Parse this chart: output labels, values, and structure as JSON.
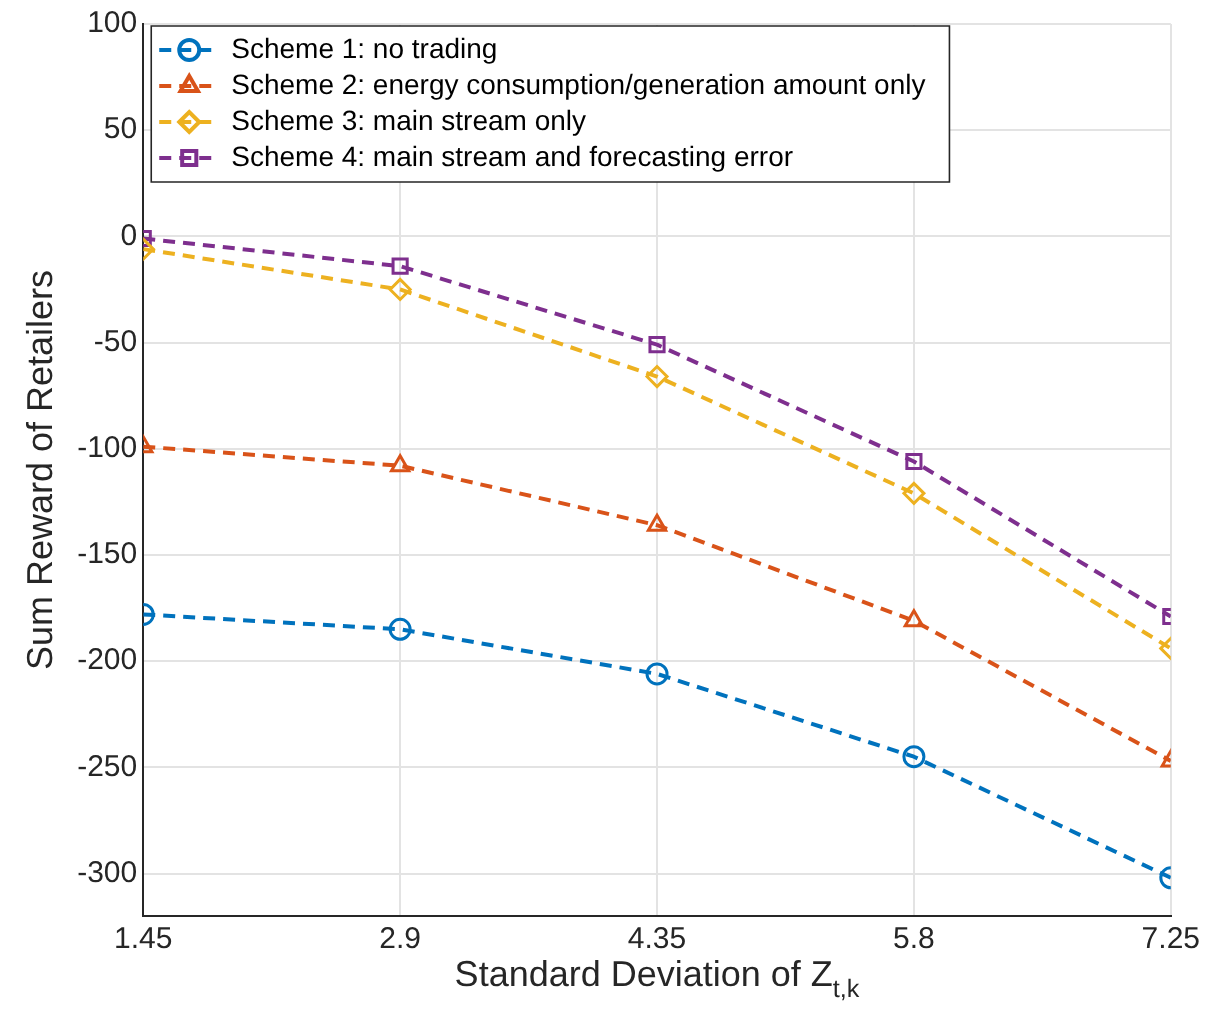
{
  "chart_data": {
    "type": "line",
    "xlabel": "Standard Deviation of Z$_{t,k}$",
    "ylabel": "Sum Reward of Retailers",
    "x": [
      1.45,
      2.9,
      4.35,
      5.8,
      7.25
    ],
    "series": [
      {
        "name": "Scheme 1: no trading",
        "color": "#0072bd",
        "marker": "circle",
        "values": [
          -178,
          -185,
          -206,
          -245,
          -302
        ]
      },
      {
        "name": "Scheme 2: energy consumption/generation amount only",
        "color": "#d95319",
        "marker": "triangle",
        "values": [
          -99,
          -108,
          -136,
          -181,
          -247
        ]
      },
      {
        "name": "Scheme 3: main stream only",
        "color": "#edb120",
        "marker": "diamond",
        "values": [
          -6,
          -25,
          -66,
          -121,
          -194
        ]
      },
      {
        "name": "Scheme 4: main stream and forecasting error",
        "color": "#7e2f8e",
        "marker": "square",
        "values": [
          -1,
          -14,
          -51,
          -106,
          -179
        ]
      }
    ],
    "xlim": [
      1.45,
      7.25
    ],
    "xticks": [
      1.45,
      2.9,
      4.35,
      5.8,
      7.25
    ],
    "ylim": [
      -320,
      100
    ],
    "yticks": [
      -300,
      -250,
      -200,
      -150,
      -100,
      -50,
      0,
      50,
      100
    ],
    "grid": true,
    "legend": "top left",
    "line_style": "dashed"
  }
}
